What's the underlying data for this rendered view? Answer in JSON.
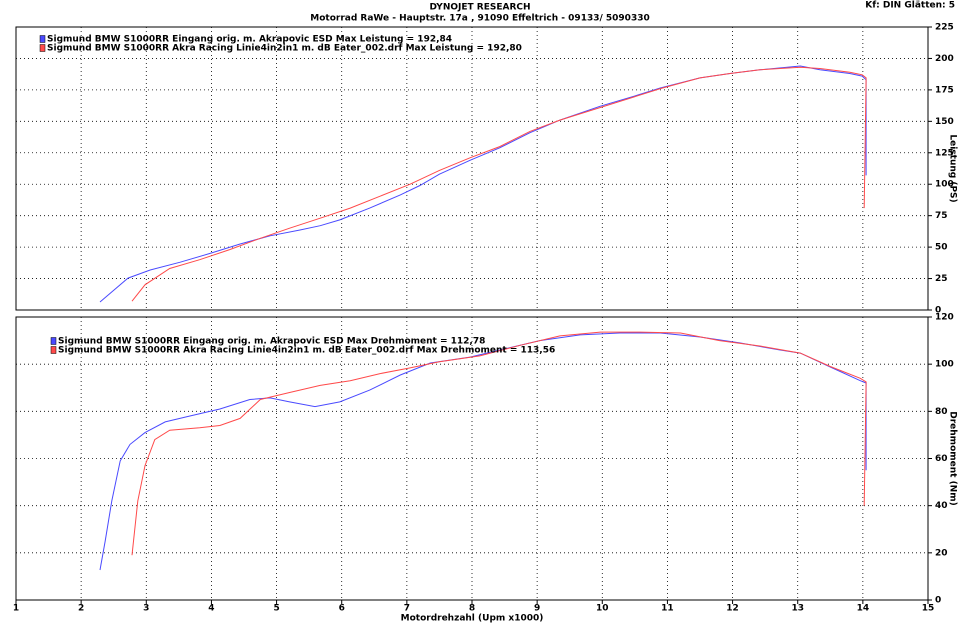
{
  "header": {
    "title": "DYNOJET RESEARCH",
    "subtitle": "Motorrad RaWe  - Hauptstr. 17a , 91090 Effeltrich - 09133/ 5090330",
    "settings": "Kf: DIN  Glätten: 5"
  },
  "chart_data": [
    {
      "type": "line",
      "ylabel": "Leistung (PS)",
      "xlim": [
        1,
        15
      ],
      "xticks": [
        1,
        2,
        3,
        4,
        5,
        6,
        7,
        8,
        9,
        10,
        11,
        12,
        13,
        14,
        15
      ],
      "ylim": [
        0,
        225
      ],
      "yticks": [
        0,
        25,
        50,
        75,
        100,
        125,
        150,
        175,
        200,
        225
      ],
      "grid": true,
      "series": [
        {
          "name": "Sigmund BMW S1000RR Eingang orig. m. Akrapovic ESD Max Leistung = 192,84",
          "color": "#4a4aff",
          "x": [
            2.29,
            2.72,
            3.06,
            3.52,
            3.98,
            4.44,
            4.9,
            5.36,
            5.67,
            5.97,
            6.43,
            6.9,
            7.2,
            7.5,
            7.97,
            8.43,
            8.89,
            9.35,
            9.97,
            10.43,
            10.89,
            11.5,
            11.96,
            12.42,
            13.04,
            13.34,
            13.8,
            13.99,
            14.05,
            14.05
          ],
          "values": [
            6.4,
            25.4,
            31.8,
            38,
            45,
            52.5,
            59,
            63.6,
            67,
            71.6,
            81,
            91.5,
            99,
            108,
            119,
            129,
            141,
            151,
            162,
            169,
            176.5,
            184.5,
            188,
            191,
            194,
            191,
            188,
            186,
            183,
            107
          ]
        },
        {
          "name": "Sigmund BMW S1000RR Akra Racing Linie4in2in1 m. dB Eater_002.drf Max Leistung = 192,80",
          "color": "#ff4a4a",
          "x": [
            2.78,
            2.98,
            3.36,
            3.82,
            4.28,
            4.75,
            5.2,
            5.67,
            6.13,
            6.59,
            7.05,
            7.5,
            7.97,
            8.43,
            8.89,
            9.35,
            9.97,
            10.43,
            10.89,
            11.5,
            11.96,
            12.42,
            13.04,
            13.34,
            13.8,
            13.99,
            14.05,
            14.02
          ],
          "values": [
            7,
            20,
            33,
            40,
            48,
            57,
            65,
            73,
            81,
            90.5,
            100,
            111,
            121,
            130,
            142,
            151,
            161,
            168.5,
            176,
            184.5,
            188,
            191,
            193,
            192,
            189,
            187,
            184.5,
            81
          ]
        }
      ]
    },
    {
      "type": "line",
      "xlabel": "Motordrehzahl (Upm x1000)",
      "ylabel": "Drehmoment  (Nm)",
      "xlim": [
        1,
        15
      ],
      "xticks": [
        1,
        2,
        3,
        4,
        5,
        6,
        7,
        8,
        9,
        10,
        11,
        12,
        13,
        14,
        15
      ],
      "ylim": [
        0,
        120
      ],
      "yticks": [
        0,
        20,
        40,
        60,
        80,
        100,
        120
      ],
      "grid": true,
      "series": [
        {
          "name": "Sigmund BMW S1000RR Eingang orig. m. Akrapovic ESD Max Drehmoment = 112,78",
          "color": "#4a4aff",
          "x": [
            2.29,
            2.37,
            2.47,
            2.6,
            2.75,
            2.98,
            3.29,
            3.67,
            4.13,
            4.59,
            4.9,
            5.2,
            5.59,
            5.97,
            6.43,
            6.9,
            7.36,
            7.97,
            8.43,
            9.04,
            9.66,
            10.27,
            10.89,
            11.5,
            12.11,
            12.73,
            13.04,
            13.5,
            13.96,
            14.05,
            14.05
          ],
          "values": [
            12.7,
            25,
            42,
            59,
            66,
            71,
            75.5,
            78,
            81,
            85,
            85.7,
            84,
            82,
            84,
            89,
            95.4,
            100.5,
            103,
            106,
            110,
            112.4,
            113.2,
            113.2,
            111.5,
            109,
            106,
            104.7,
            98.8,
            93,
            92,
            55
          ]
        },
        {
          "name": "Sigmund BMW S1000RR Akra Racing Linie4in2in1 m. dB Eater_002.drf Max Drehmoment = 113,56",
          "color": "#ff4a4a",
          "x": [
            2.78,
            2.87,
            2.98,
            3.13,
            3.36,
            3.82,
            4.13,
            4.44,
            4.75,
            5.2,
            5.67,
            6.13,
            6.59,
            7.05,
            7.5,
            8.12,
            8.74,
            9.35,
            9.97,
            10.58,
            11.2,
            11.8,
            12.42,
            13.04,
            13.5,
            13.96,
            14.05,
            14.02
          ],
          "values": [
            19,
            42,
            57,
            68,
            72,
            73,
            74,
            77,
            85,
            88,
            91,
            93,
            96,
            98.4,
            101,
            103.5,
            108,
            112,
            113.6,
            113.6,
            113.2,
            110,
            107.7,
            104.7,
            99,
            94,
            92.5,
            40
          ]
        }
      ]
    }
  ]
}
